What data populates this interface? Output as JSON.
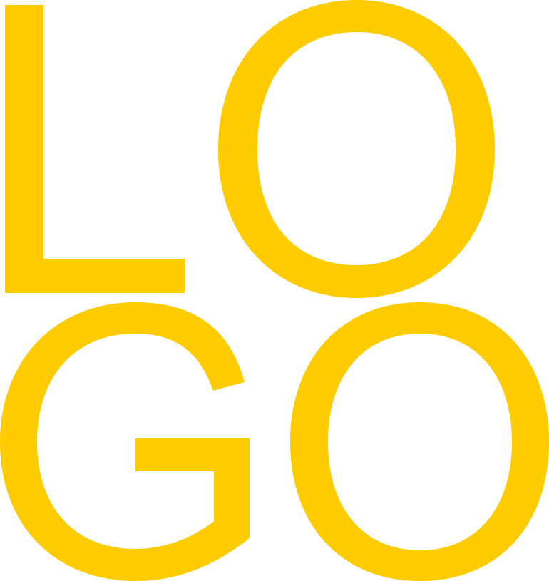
{
  "logo": {
    "text": "LOGO",
    "line1": "LO",
    "line2": "GO",
    "color": "#FFCC00",
    "background": "#FFFFFF"
  }
}
